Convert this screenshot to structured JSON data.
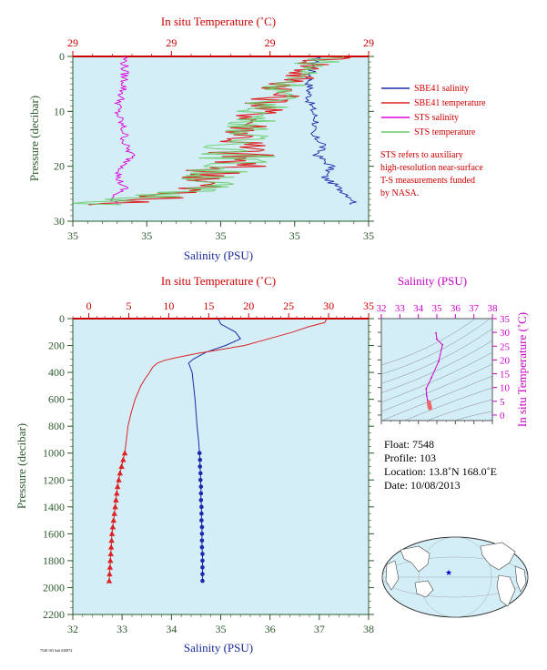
{
  "chart_data": [
    {
      "type": "line",
      "panel": "near-surface",
      "top_axis_title": "In situ Temperature (˚C)",
      "top_tick_labels": [
        "29",
        "29",
        "29",
        "29"
      ],
      "bottom_axis_title": "Salinity (PSU)",
      "bottom_tick_labels": [
        "35",
        "35",
        "35",
        "35",
        "35"
      ],
      "y_axis_title": "Pressure (decibar)",
      "y_tick_labels": [
        "0",
        "10",
        "20",
        "30"
      ],
      "ylim": [
        30,
        0
      ],
      "x_salinity_range": [
        34.9,
        35.3
      ],
      "x_temperature_range": [
        28.85,
        29.15
      ],
      "legend": [
        {
          "name": "SBE41 salinity",
          "color": "#1a2aaa"
        },
        {
          "name": "SBE41 temperature",
          "color": "#dd2222"
        },
        {
          "name": "STS salinity",
          "color": "#dd00dd"
        },
        {
          "name": "STS temperature",
          "color": "#66cc66"
        }
      ],
      "note": [
        "STS refers to auxiliary",
        "high-resolution near-surface",
        "T-S measurements funded",
        "by NASA."
      ],
      "series": [
        {
          "name": "SBE41 salinity",
          "pressure": [
            0,
            4,
            8,
            12,
            14,
            16,
            18,
            20,
            22,
            24,
            25,
            26,
            27
          ],
          "values": [
            35.23,
            35.22,
            35.22,
            35.23,
            35.22,
            35.24,
            35.23,
            35.25,
            35.24,
            35.26,
            35.27,
            35.28,
            35.28
          ]
        },
        {
          "name": "SBE41 temperature",
          "pressure": [
            0,
            1,
            5,
            10,
            13,
            16,
            18,
            20,
            21,
            22,
            24,
            25,
            26,
            27
          ],
          "values": [
            29.12,
            29.1,
            29.07,
            29.04,
            29.03,
            29.02,
            29.02,
            29.01,
            28.99,
            29.0,
            28.97,
            28.95,
            28.92,
            28.88
          ]
        },
        {
          "name": "STS salinity",
          "pressure": [
            0,
            1,
            5,
            10,
            14,
            16,
            18,
            20,
            22,
            24,
            25,
            26,
            27
          ],
          "values": [
            34.97,
            34.97,
            34.97,
            34.96,
            34.97,
            34.97,
            34.98,
            34.97,
            34.96,
            34.97,
            34.96,
            34.95,
            34.96
          ]
        },
        {
          "name": "STS temperature",
          "pressure": [
            0,
            1,
            5,
            10,
            13,
            16,
            18,
            20,
            21,
            22,
            24,
            25,
            26,
            27
          ],
          "values": [
            29.12,
            29.1,
            29.07,
            29.04,
            29.03,
            29.02,
            29.02,
            29.01,
            28.99,
            29.0,
            28.97,
            28.95,
            28.92,
            28.88
          ]
        }
      ]
    },
    {
      "type": "line",
      "panel": "full-profile",
      "top_axis_title": "In situ Temperature (˚C)",
      "top_tick_labels": [
        "0",
        "5",
        "10",
        "15",
        "20",
        "25",
        "30",
        "35"
      ],
      "bottom_axis_title": "Salinity (PSU)",
      "bottom_tick_labels": [
        "32",
        "33",
        "34",
        "35",
        "36",
        "37",
        "38"
      ],
      "y_axis_title": "Pressure (decibar)",
      "y_tick_labels": [
        "0",
        "200",
        "400",
        "600",
        "800",
        "1000",
        "1200",
        "1400",
        "1600",
        "1800",
        "2000",
        "2200"
      ],
      "ylim": [
        2200,
        0
      ],
      "x_salinity_range": [
        32,
        38
      ],
      "x_temperature_range": [
        -2,
        35
      ],
      "series": [
        {
          "name": "Salinity",
          "color": "#1a2aaa",
          "pressure": [
            0,
            40,
            100,
            150,
            200,
            250,
            300,
            330,
            360,
            400,
            500,
            600,
            700,
            800,
            900,
            1000
          ],
          "values": [
            34.95,
            35.0,
            35.3,
            35.4,
            35.1,
            34.7,
            34.45,
            34.35,
            34.38,
            34.42,
            34.45,
            34.48,
            34.5,
            34.52,
            34.55,
            34.57
          ],
          "points_pressure": [
            1000,
            1050,
            1100,
            1150,
            1200,
            1250,
            1300,
            1350,
            1400,
            1450,
            1500,
            1550,
            1600,
            1650,
            1700,
            1750,
            1800,
            1850,
            1900,
            1950
          ],
          "points_values": [
            34.57,
            34.58,
            34.58,
            34.59,
            34.59,
            34.6,
            34.6,
            34.6,
            34.61,
            34.61,
            34.61,
            34.62,
            34.62,
            34.62,
            34.62,
            34.63,
            34.63,
            34.63,
            34.63,
            34.63
          ]
        },
        {
          "name": "Temperature",
          "color": "#dd2222",
          "pressure": [
            0,
            30,
            60,
            100,
            150,
            200,
            230,
            260,
            290,
            310,
            330,
            360,
            400,
            450,
            500,
            600,
            700,
            800,
            900,
            1000
          ],
          "values": [
            29.8,
            29.5,
            27.5,
            25.5,
            22.5,
            19.5,
            16.5,
            13.5,
            11.0,
            9.5,
            8.6,
            8.0,
            7.6,
            7.0,
            6.5,
            5.8,
            5.3,
            4.9,
            4.7,
            4.5
          ],
          "points_pressure": [
            1000,
            1050,
            1100,
            1150,
            1200,
            1250,
            1300,
            1350,
            1400,
            1450,
            1500,
            1550,
            1600,
            1650,
            1700,
            1750,
            1800,
            1850,
            1900,
            1950
          ],
          "points_values": [
            4.5,
            4.3,
            4.1,
            3.9,
            3.75,
            3.6,
            3.5,
            3.4,
            3.3,
            3.2,
            3.1,
            3.0,
            2.9,
            2.85,
            2.8,
            2.75,
            2.7,
            2.65,
            2.6,
            2.55
          ]
        }
      ]
    },
    {
      "type": "scatter",
      "panel": "T-S diagram",
      "x_axis_title": "Salinity (PSU)",
      "x_tick_labels": [
        "32",
        "33",
        "34",
        "35",
        "36",
        "37",
        "38"
      ],
      "y_axis_title": "In situ Temperature (˚C)",
      "y_tick_labels": [
        "0",
        "5",
        "10",
        "15",
        "20",
        "25",
        "30",
        "35"
      ],
      "xlim": [
        32,
        38
      ],
      "ylim": [
        -2,
        35
      ],
      "series": [
        {
          "name": "T-S curve",
          "color": "#cc00cc",
          "salinity": [
            34.95,
            35.0,
            35.3,
            35.1,
            34.7,
            34.42,
            34.45,
            34.5,
            34.55,
            34.57
          ],
          "temperature": [
            29.8,
            27.5,
            25.5,
            19.5,
            13.5,
            9.5,
            7.0,
            5.3,
            4.7,
            4.5
          ]
        },
        {
          "name": "deep points",
          "color": "#ee6666",
          "salinity": [
            34.57,
            34.59,
            34.6,
            34.61,
            34.62,
            34.63
          ],
          "temperature": [
            4.5,
            3.75,
            3.4,
            3.1,
            2.8,
            2.55
          ]
        }
      ]
    }
  ],
  "metadata_text": {
    "float": "Float:  7548",
    "profile": "Profile:  103",
    "location": "Location:  13.8˚N  168.0˚E",
    "date": "Date:  10/08/2013"
  },
  "footer_code": "7548 103 Salt 030874"
}
